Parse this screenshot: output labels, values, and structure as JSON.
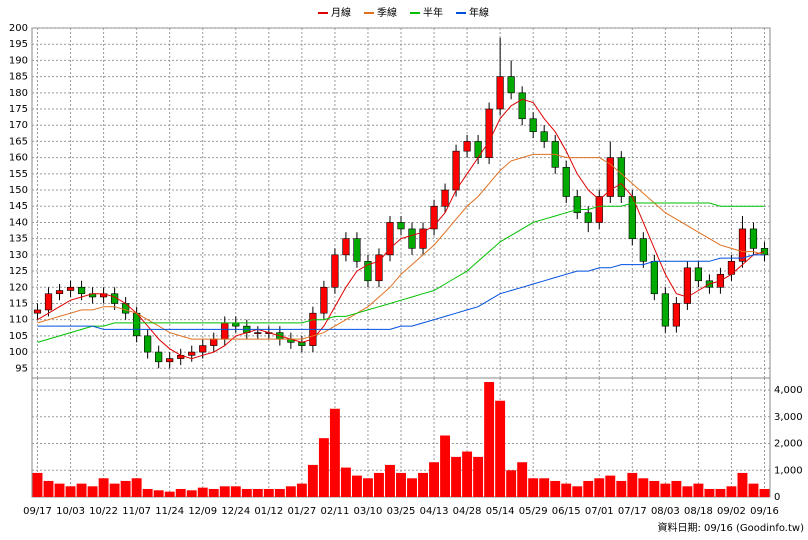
{
  "chart_data": {
    "type": "candlestick",
    "categories": [
      "09/17",
      null,
      null,
      "10/03",
      null,
      null,
      "10/22",
      null,
      null,
      "11/07",
      null,
      null,
      "11/24",
      null,
      null,
      "12/09",
      null,
      null,
      "12/24",
      null,
      null,
      "01/12",
      null,
      null,
      "01/27",
      null,
      null,
      "02/11",
      null,
      null,
      "03/10",
      null,
      null,
      "03/25",
      null,
      null,
      "04/13",
      null,
      null,
      "04/28",
      null,
      null,
      "05/14",
      null,
      null,
      "05/29",
      null,
      null,
      "06/15",
      null,
      null,
      "07/01",
      null,
      null,
      "07/17",
      null,
      null,
      "08/03",
      null,
      null,
      "08/18",
      null,
      null,
      "09/02",
      null,
      null,
      "09/16"
    ],
    "open": [
      112,
      113,
      118,
      119,
      120,
      118,
      117,
      118,
      115,
      112,
      105,
      100,
      97,
      98,
      99,
      100,
      102,
      104,
      109,
      108,
      106,
      106,
      106,
      104,
      103,
      102,
      112,
      120,
      130,
      135,
      128,
      122,
      130,
      140,
      138,
      132,
      138,
      145,
      150,
      162,
      165,
      160,
      175,
      185,
      180,
      172,
      168,
      165,
      157,
      148,
      143,
      140,
      148,
      160,
      148,
      135,
      128,
      118,
      108,
      115,
      126,
      122,
      120,
      124,
      128,
      138,
      132
    ],
    "high": [
      115,
      120,
      121,
      122,
      122,
      120,
      120,
      120,
      117,
      114,
      107,
      102,
      100,
      101,
      102,
      104,
      106,
      111,
      111,
      110,
      108,
      108,
      108,
      106,
      105,
      114,
      122,
      132,
      137,
      137,
      130,
      132,
      142,
      142,
      140,
      140,
      147,
      152,
      164,
      167,
      167,
      177,
      197,
      190,
      182,
      174,
      170,
      167,
      159,
      150,
      145,
      150,
      165,
      162,
      150,
      137,
      130,
      120,
      117,
      128,
      128,
      124,
      126,
      130,
      142,
      140,
      134
    ],
    "low": [
      110,
      111,
      116,
      117,
      116,
      115,
      115,
      113,
      110,
      103,
      98,
      95,
      95,
      96,
      97,
      98,
      100,
      102,
      106,
      104,
      104,
      104,
      102,
      101,
      100,
      100,
      110,
      118,
      128,
      126,
      120,
      120,
      128,
      136,
      130,
      130,
      136,
      143,
      148,
      160,
      158,
      158,
      173,
      178,
      170,
      166,
      163,
      155,
      146,
      141,
      137,
      138,
      146,
      146,
      133,
      126,
      116,
      106,
      106,
      113,
      120,
      118,
      118,
      122,
      126,
      130,
      128
    ],
    "close": [
      113,
      118,
      119,
      120,
      118,
      117,
      118,
      115,
      112,
      105,
      100,
      97,
      98,
      99,
      100,
      102,
      104,
      109,
      108,
      106,
      106,
      106,
      104,
      103,
      102,
      112,
      120,
      130,
      135,
      128,
      122,
      130,
      140,
      138,
      132,
      138,
      145,
      150,
      162,
      165,
      160,
      175,
      185,
      180,
      172,
      168,
      165,
      157,
      148,
      143,
      140,
      148,
      160,
      148,
      135,
      128,
      118,
      108,
      115,
      126,
      122,
      120,
      124,
      128,
      138,
      132,
      130
    ],
    "up_color": "#ff0000",
    "down_color": "#00aa00",
    "ylim": [
      92,
      200
    ],
    "yticks": [
      95,
      100,
      105,
      110,
      115,
      120,
      125,
      130,
      135,
      140,
      145,
      150,
      155,
      160,
      165,
      170,
      175,
      180,
      185,
      190,
      195,
      200
    ],
    "grid": true,
    "legend": "top",
    "series": [
      {
        "name": "月線",
        "color": "#e00000",
        "values": [
          110,
          112,
          114,
          116,
          117,
          118,
          118,
          117,
          115,
          112,
          108,
          104,
          101,
          99,
          98,
          99,
          100,
          102,
          105,
          106,
          107,
          106,
          105,
          104,
          103,
          104,
          108,
          114,
          120,
          125,
          127,
          128,
          132,
          135,
          136,
          137,
          139,
          143,
          150,
          155,
          160,
          165,
          172,
          176,
          178,
          177,
          172,
          168,
          162,
          155,
          150,
          147,
          150,
          152,
          148,
          140,
          132,
          124,
          118,
          117,
          119,
          121,
          122,
          124,
          127,
          130,
          131
        ]
      },
      {
        "name": "季線",
        "color": "#e07020",
        "values": [
          109,
          110,
          111,
          112,
          113,
          113,
          114,
          114,
          113,
          112,
          110,
          108,
          106,
          105,
          104,
          104,
          104,
          104,
          104,
          104,
          104,
          104,
          104,
          104,
          104,
          105,
          106,
          108,
          110,
          112,
          114,
          117,
          120,
          124,
          127,
          130,
          133,
          137,
          141,
          145,
          148,
          152,
          156,
          159,
          160,
          161,
          161,
          161,
          160,
          160,
          160,
          160,
          158,
          155,
          152,
          149,
          146,
          143,
          141,
          139,
          137,
          135,
          133,
          132,
          131,
          131,
          130
        ]
      },
      {
        "name": "半年",
        "color": "#00c000",
        "values": [
          103,
          104,
          105,
          106,
          107,
          108,
          108,
          109,
          109,
          109,
          109,
          109,
          109,
          109,
          109,
          109,
          109,
          109,
          109,
          109,
          109,
          109,
          109,
          109,
          109,
          110,
          110,
          111,
          111,
          112,
          113,
          114,
          115,
          116,
          117,
          118,
          119,
          121,
          123,
          125,
          128,
          131,
          134,
          136,
          138,
          140,
          141,
          142,
          143,
          144,
          144,
          145,
          145,
          145,
          146,
          146,
          146,
          146,
          146,
          146,
          146,
          146,
          145,
          145,
          145,
          145,
          145
        ]
      },
      {
        "name": "年線",
        "color": "#0050e0",
        "values": [
          108,
          108,
          108,
          108,
          108,
          108,
          107,
          107,
          107,
          107,
          107,
          107,
          107,
          107,
          107,
          107,
          107,
          107,
          107,
          107,
          107,
          107,
          107,
          107,
          107,
          107,
          107,
          107,
          107,
          107,
          107,
          107,
          107,
          108,
          108,
          109,
          110,
          111,
          112,
          113,
          114,
          116,
          118,
          119,
          120,
          121,
          122,
          123,
          124,
          125,
          125,
          126,
          126,
          127,
          127,
          127,
          128,
          128,
          128,
          128,
          128,
          128,
          129,
          129,
          129,
          130,
          130
        ]
      }
    ],
    "volume": {
      "color": "#ff0000",
      "values": [
        900,
        600,
        500,
        400,
        500,
        400,
        700,
        500,
        600,
        700,
        300,
        250,
        200,
        300,
        250,
        350,
        300,
        400,
        400,
        300,
        300,
        300,
        300,
        400,
        500,
        1200,
        2200,
        3300,
        1100,
        800,
        700,
        900,
        1200,
        900,
        700,
        900,
        1300,
        2300,
        1500,
        1700,
        1500,
        4300,
        3600,
        1000,
        1300,
        700,
        700,
        600,
        500,
        400,
        600,
        700,
        800,
        600,
        900,
        700,
        600,
        500,
        600,
        400,
        500,
        300,
        300,
        400,
        900,
        500,
        300
      ],
      "ylim": [
        0,
        4450
      ],
      "yticks": [
        0,
        {
          "value": 1000,
          "label": "1,000"
        },
        {
          "value": 2000,
          "label": "2,000"
        },
        {
          "value": 3000,
          "label": "3,000"
        },
        {
          "value": 4000,
          "label": "4,000"
        }
      ]
    },
    "source": "資料日期: 09/16 (Goodinfo.tw)"
  }
}
